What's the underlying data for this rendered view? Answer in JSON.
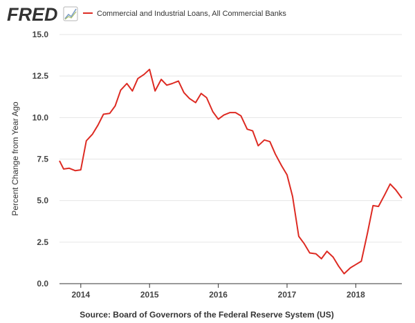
{
  "logo": {
    "text": "FRED",
    "icon": "trend-line-icon"
  },
  "legend": {
    "label": "Commercial and Industrial Loans, All Commercial Banks"
  },
  "source": "Source: Board of Governors of the Federal Reserve System (US)",
  "colors": {
    "series": "#dd2a22",
    "logo": "#333333",
    "gridline": "#e5e5e5",
    "axis": "#333333"
  },
  "chart_data": {
    "type": "line",
    "title": "",
    "xlabel": "",
    "ylabel": "Percent Change from Year Ago",
    "ylim": [
      0,
      15
    ],
    "grid": true,
    "legend_position": "top-left",
    "yticks": [
      "0.0",
      "2.5",
      "5.0",
      "7.5",
      "10.0",
      "12.5",
      "15.0"
    ],
    "xticks": [
      {
        "label": "2014",
        "x": 2014.0
      },
      {
        "label": "2015",
        "x": 2015.0
      },
      {
        "label": "2016",
        "x": 2016.0
      },
      {
        "label": "2017",
        "x": 2017.0
      },
      {
        "label": "2018",
        "x": 2018.0
      }
    ],
    "xlim": [
      2013.69,
      2018.67
    ],
    "series": [
      {
        "name": "Commercial and Industrial Loans, All Commercial Banks",
        "x": [
          2013.69,
          2013.75,
          2013.83,
          2013.92,
          2014.0,
          2014.08,
          2014.17,
          2014.25,
          2014.33,
          2014.42,
          2014.5,
          2014.58,
          2014.67,
          2014.75,
          2014.83,
          2014.92,
          2015.0,
          2015.08,
          2015.17,
          2015.25,
          2015.33,
          2015.42,
          2015.5,
          2015.58,
          2015.67,
          2015.75,
          2015.83,
          2015.92,
          2016.0,
          2016.08,
          2016.17,
          2016.25,
          2016.33,
          2016.42,
          2016.5,
          2016.58,
          2016.67,
          2016.75,
          2016.83,
          2016.92,
          2017.0,
          2017.08,
          2017.17,
          2017.25,
          2017.33,
          2017.42,
          2017.5,
          2017.58,
          2017.67,
          2017.75,
          2017.83,
          2017.92,
          2018.0,
          2018.08,
          2018.17,
          2018.25,
          2018.33,
          2018.42,
          2018.5,
          2018.58,
          2018.67
        ],
        "values": [
          7.4,
          6.9,
          6.95,
          6.8,
          6.85,
          8.6,
          9.0,
          9.55,
          10.2,
          10.25,
          10.7,
          11.65,
          12.05,
          11.6,
          12.35,
          12.6,
          12.9,
          11.6,
          12.3,
          11.95,
          12.05,
          12.2,
          11.5,
          11.15,
          10.9,
          11.45,
          11.2,
          10.35,
          9.9,
          10.15,
          10.3,
          10.3,
          10.1,
          9.3,
          9.2,
          8.3,
          8.65,
          8.55,
          7.8,
          7.1,
          6.55,
          5.25,
          2.85,
          2.4,
          1.85,
          1.8,
          1.5,
          1.95,
          1.6,
          1.05,
          0.6,
          0.95,
          1.15,
          1.35,
          3.05,
          4.7,
          4.65,
          5.35,
          6.0,
          5.65,
          5.15
        ]
      }
    ]
  }
}
